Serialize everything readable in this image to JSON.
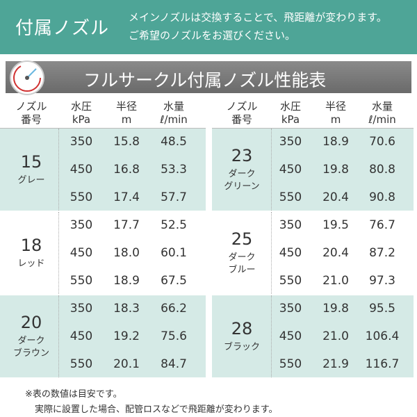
{
  "header": {
    "title": "付属ノズル",
    "description": [
      "メインノズルは交換することで、飛距離が変わります。",
      "ご希望のノズルをお選びください。"
    ]
  },
  "table": {
    "title": "フルサークル付属ノズル性能表",
    "columns": [
      [
        "ノズル",
        "番号"
      ],
      [
        "水圧",
        "kPa"
      ],
      [
        "半径",
        "m"
      ],
      [
        "水量",
        "ℓ/min"
      ]
    ],
    "groups": [
      {
        "number": "15",
        "color": [
          "グレー"
        ],
        "rows": [
          [
            "350",
            "15.8",
            "48.5"
          ],
          [
            "450",
            "16.8",
            "53.3"
          ],
          [
            "550",
            "17.4",
            "57.7"
          ]
        ]
      },
      {
        "number": "18",
        "color": [
          "レッド"
        ],
        "rows": [
          [
            "350",
            "17.7",
            "52.5"
          ],
          [
            "450",
            "18.0",
            "60.1"
          ],
          [
            "550",
            "18.9",
            "67.5"
          ]
        ]
      },
      {
        "number": "20",
        "color": [
          "ダーク",
          "ブラウン"
        ],
        "rows": [
          [
            "350",
            "18.3",
            "66.2"
          ],
          [
            "450",
            "19.2",
            "75.6"
          ],
          [
            "550",
            "20.1",
            "84.7"
          ]
        ]
      },
      {
        "number": "23",
        "color": [
          "ダーク",
          "グリーン"
        ],
        "rows": [
          [
            "350",
            "18.9",
            "70.6"
          ],
          [
            "450",
            "19.8",
            "80.8"
          ],
          [
            "550",
            "20.4",
            "90.8"
          ]
        ]
      },
      {
        "number": "25",
        "color": [
          "ダーク",
          "ブルー"
        ],
        "rows": [
          [
            "350",
            "19.5",
            "76.7"
          ],
          [
            "450",
            "20.4",
            "87.2"
          ],
          [
            "550",
            "21.0",
            "97.3"
          ]
        ]
      },
      {
        "number": "28",
        "color": [
          "ブラック"
        ],
        "rows": [
          [
            "350",
            "19.8",
            "95.5"
          ],
          [
            "450",
            "21.0",
            "106.4"
          ],
          [
            "550",
            "21.9",
            "116.7"
          ]
        ]
      }
    ]
  },
  "notes": [
    "※表の数値は目安です。",
    "実際に設置した場合、配管ロスなどで飛距離が変わります。"
  ]
}
